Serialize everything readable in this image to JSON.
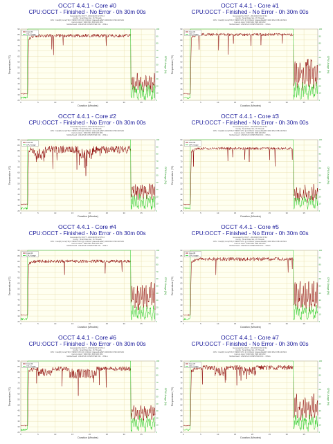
{
  "shared": {
    "subtitle": "CPU:OCCT - Finished - No Error - 0h 30m 00s",
    "info_lines": [
      "Generated by OCCT - 2014/11/15 02:37:44",
      "Config : Small Data Set, 16 Threads",
      "CPU : Intel(R) Core(TM) i7-5960X CPU @ 3.00GHz (Haswell-E/EP) 3000 Mhz FSB 100 Mhz",
      "Current clock : 3000 Mhz FSB 100 Mhz",
      "Motherboard : ASUSTeK COMPUTER INC. - X99-A"
    ],
    "xlabel": "Duration (Minutes)",
    "ylabel": "Temperature (°C)",
    "ylabel_right": "CPU Usage (%)",
    "legend_usage": "CPU Usage",
    "colors": {
      "temp": "#8b0000",
      "usage": "#22cc22",
      "grid": "#e6dba6",
      "background": "#fffff0",
      "axis_right": "#2a9a2a"
    }
  },
  "chart_data": [
    {
      "type": "line",
      "title": "OCCT 4.4.1 - Core #0",
      "legend": "Core #0",
      "xlim": [
        0,
        39
      ],
      "ylim": [
        25,
        90
      ],
      "y2lim": [
        0,
        100
      ],
      "xticks": [
        0,
        5,
        10,
        15,
        20,
        25,
        30,
        35
      ],
      "yticks": [
        25,
        30,
        35,
        40,
        45,
        50,
        55,
        60,
        65,
        70,
        75,
        80,
        85,
        90
      ],
      "y2ticks": [
        0,
        10,
        20,
        30,
        40,
        50,
        60,
        70,
        80,
        90,
        100
      ],
      "temp": {
        "start": 2,
        "end": 32,
        "idle": 31,
        "load": 84,
        "noise": 1.5,
        "dips": [],
        "tail": [
          40,
          46,
          37,
          44,
          35,
          41,
          39,
          47,
          36,
          42
        ]
      },
      "usage": {
        "start": 2,
        "end": 32,
        "tail": [
          3,
          12,
          20,
          6,
          18,
          9,
          14,
          4
        ]
      }
    },
    {
      "type": "line",
      "title": "OCCT 4.4.1 - Core #1",
      "legend": "Core #1",
      "xlim": [
        0,
        39
      ],
      "ylim": [
        25,
        90
      ],
      "y2lim": [
        0,
        100
      ],
      "xticks": [
        0,
        5,
        10,
        15,
        20,
        25,
        30,
        35
      ],
      "yticks": [
        25,
        30,
        35,
        40,
        45,
        50,
        55,
        60,
        65,
        70,
        75,
        80,
        85,
        90
      ],
      "y2ticks": [
        0,
        10,
        20,
        30,
        40,
        50,
        60,
        70,
        80,
        90,
        100
      ],
      "temp": {
        "start": 2,
        "end": 32,
        "idle": 31,
        "load": 85,
        "noise": 1.3,
        "dips": [],
        "tail": [
          40,
          58,
          44,
          60,
          38,
          55,
          42,
          61,
          47,
          52,
          36,
          57,
          43
        ]
      },
      "usage": {
        "start": 2,
        "end": 32,
        "tail": [
          5,
          14,
          22,
          8,
          17,
          11,
          19,
          6
        ]
      }
    },
    {
      "type": "line",
      "title": "OCCT 4.4.1 - Core #2",
      "legend": "Core #2",
      "xlim": [
        0,
        39
      ],
      "ylim": [
        25,
        90
      ],
      "y2lim": [
        0,
        100
      ],
      "xticks": [
        0,
        5,
        10,
        15,
        20,
        25,
        30,
        35
      ],
      "yticks": [
        25,
        30,
        35,
        40,
        45,
        50,
        55,
        60,
        65,
        70,
        75,
        80,
        85,
        90
      ],
      "y2ticks": [
        0,
        10,
        20,
        30,
        40,
        50,
        60,
        70,
        80,
        90,
        100
      ],
      "temp": {
        "start": 2,
        "end": 32,
        "idle": 31,
        "load": 81,
        "noise": 3.5,
        "dips": [
          {
            "from": 4,
            "to": 7,
            "depth": 8
          },
          {
            "from": 17,
            "to": 21,
            "depth": 6
          }
        ],
        "tail": [
          40,
          48,
          43,
          46,
          38,
          49,
          41,
          45,
          37,
          44
        ]
      },
      "usage": {
        "start": 2,
        "end": 32,
        "tail": [
          4,
          13,
          21,
          7,
          16,
          10,
          18,
          5
        ]
      }
    },
    {
      "type": "line",
      "title": "OCCT 4.4.1 - Core #3",
      "legend": "Core #3",
      "xlim": [
        0,
        39
      ],
      "ylim": [
        25,
        90
      ],
      "y2lim": [
        0,
        100
      ],
      "xticks": [
        0,
        5,
        10,
        15,
        20,
        25,
        30,
        35
      ],
      "yticks": [
        25,
        30,
        35,
        40,
        45,
        50,
        55,
        60,
        65,
        70,
        75,
        80,
        85,
        90
      ],
      "y2ticks": [
        0,
        10,
        20,
        30,
        40,
        50,
        60,
        70,
        80,
        90,
        100
      ],
      "temp": {
        "start": 2,
        "end": 32,
        "idle": 31,
        "load": 82,
        "noise": 1.2,
        "dips": [],
        "tail": [
          38,
          44,
          36,
          47,
          39,
          42,
          35,
          45,
          40,
          37
        ]
      },
      "usage": {
        "start": 2,
        "end": 32,
        "tail": [
          6,
          15,
          20,
          9,
          18,
          12,
          16,
          7
        ]
      }
    },
    {
      "type": "line",
      "title": "OCCT 4.4.1 - Core #4",
      "legend": "Core #4",
      "xlim": [
        0,
        39
      ],
      "ylim": [
        25,
        90
      ],
      "y2lim": [
        0,
        100
      ],
      "xticks": [
        0,
        5,
        10,
        15,
        20,
        25,
        30,
        35
      ],
      "yticks": [
        25,
        30,
        35,
        40,
        45,
        50,
        55,
        60,
        65,
        70,
        75,
        80,
        85,
        90
      ],
      "y2ticks": [
        0,
        10,
        20,
        30,
        40,
        50,
        60,
        70,
        80,
        90,
        100
      ],
      "temp": {
        "start": 2,
        "end": 32,
        "idle": 31,
        "load": 80,
        "noise": 1.4,
        "dips": [],
        "tail": [
          42,
          55,
          46,
          58,
          40,
          53,
          44,
          57,
          38,
          50
        ]
      },
      "usage": {
        "start": 2,
        "end": 32,
        "tail": [
          5,
          12,
          19,
          7,
          15,
          10,
          17,
          6
        ]
      }
    },
    {
      "type": "line",
      "title": "OCCT 4.4.1 - Core #5",
      "legend": "Core #5",
      "xlim": [
        0,
        39
      ],
      "ylim": [
        25,
        90
      ],
      "y2lim": [
        0,
        100
      ],
      "xticks": [
        0,
        5,
        10,
        15,
        20,
        25,
        30,
        35
      ],
      "yticks": [
        25,
        30,
        35,
        40,
        45,
        50,
        55,
        60,
        65,
        70,
        75,
        80,
        85,
        90
      ],
      "y2ticks": [
        0,
        10,
        20,
        30,
        40,
        50,
        60,
        70,
        80,
        90,
        100
      ],
      "temp": {
        "start": 2,
        "end": 32,
        "idle": 31,
        "load": 82,
        "noise": 1.6,
        "dips": [],
        "tail": [
          40,
          58,
          42,
          60,
          38,
          52,
          44,
          59,
          37,
          48
        ]
      },
      "usage": {
        "start": 2,
        "end": 32,
        "tail": [
          6,
          14,
          21,
          9,
          17,
          11,
          18,
          7
        ]
      }
    },
    {
      "type": "line",
      "title": "OCCT 4.4.1 - Core #6",
      "legend": "Core #6",
      "xlim": [
        0,
        39
      ],
      "ylim": [
        25,
        90
      ],
      "y2lim": [
        0,
        100
      ],
      "xticks": [
        0,
        5,
        10,
        15,
        20,
        25,
        30,
        35
      ],
      "yticks": [
        25,
        30,
        35,
        40,
        45,
        50,
        55,
        60,
        65,
        70,
        75,
        80,
        85,
        90
      ],
      "y2ticks": [
        0,
        10,
        20,
        30,
        40,
        50,
        60,
        70,
        80,
        90,
        100
      ],
      "temp": {
        "start": 2,
        "end": 32,
        "idle": 31,
        "load": 83,
        "noise": 2.0,
        "dips": [
          {
            "from": 5,
            "to": 9,
            "depth": 5
          },
          {
            "from": 14,
            "to": 22,
            "depth": 7
          }
        ],
        "tail": [
          40,
          48,
          44,
          47,
          38,
          46,
          42,
          45,
          39,
          43
        ]
      },
      "usage": {
        "start": 2,
        "end": 32,
        "tail": [
          4,
          13,
          20,
          8,
          16,
          10,
          18,
          5
        ]
      }
    },
    {
      "type": "line",
      "title": "OCCT 4.4.1 - Core #7",
      "legend": "Core #7",
      "xlim": [
        0,
        39
      ],
      "ylim": [
        25,
        90
      ],
      "y2lim": [
        0,
        100
      ],
      "xticks": [
        0,
        5,
        10,
        15,
        20,
        25,
        30,
        35
      ],
      "yticks": [
        25,
        30,
        35,
        40,
        45,
        50,
        55,
        60,
        65,
        70,
        75,
        80,
        85,
        90
      ],
      "y2ticks": [
        0,
        10,
        20,
        30,
        40,
        50,
        60,
        70,
        80,
        90,
        100
      ],
      "temp": {
        "start": 2,
        "end": 32,
        "idle": 31,
        "load": 84,
        "noise": 2.2,
        "dips": [
          {
            "from": 9,
            "to": 12,
            "depth": 6
          },
          {
            "from": 17,
            "to": 21,
            "depth": 5
          }
        ],
        "tail": [
          41,
          55,
          44,
          58,
          40,
          50,
          45,
          53,
          38,
          47
        ]
      },
      "usage": {
        "start": 2,
        "end": 32,
        "tail": [
          5,
          14,
          21,
          8,
          17,
          11,
          19,
          6
        ]
      }
    }
  ]
}
